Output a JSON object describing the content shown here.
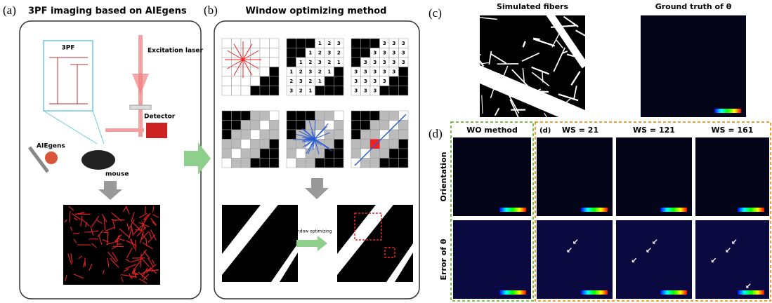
{
  "panel_a": {
    "label": "(a)",
    "title": "3PF imaging based on AIEgens",
    "inset_title": "3PF",
    "excitation": "Excitation laser",
    "detector": "Detector",
    "aiegens": "AIEgens",
    "mouse": "mouse"
  },
  "panel_b": {
    "label": "(b)",
    "title": "Window optimizing method",
    "grid_2_rows": [
      [
        1,
        2,
        3
      ],
      [
        1,
        2,
        3,
        2
      ],
      [
        1,
        2,
        3,
        2,
        1
      ],
      [
        1,
        2,
        3,
        2,
        1
      ],
      [
        2,
        3,
        2,
        1
      ],
      [
        3,
        2,
        1
      ]
    ],
    "grid_3_rows": [
      [
        3,
        3,
        3
      ],
      [
        3,
        3,
        3,
        3
      ],
      [
        3,
        3,
        3,
        3,
        3
      ],
      [
        3,
        3,
        3,
        3,
        3
      ],
      [
        3,
        3,
        3,
        3
      ],
      [
        3,
        3,
        3
      ]
    ],
    "arrow_label": "Window optimizing"
  },
  "panel_c": {
    "label": "(c)",
    "images": [
      "Simulated fibers",
      "Ground truth of θ"
    ]
  },
  "panel_d": {
    "label": "(d)",
    "inner_label": "(d)",
    "columns": [
      "WO method",
      "WS = 21",
      "WS = 121",
      "WS = 161"
    ],
    "rows": [
      "Orientation",
      "Error of θ"
    ]
  }
}
